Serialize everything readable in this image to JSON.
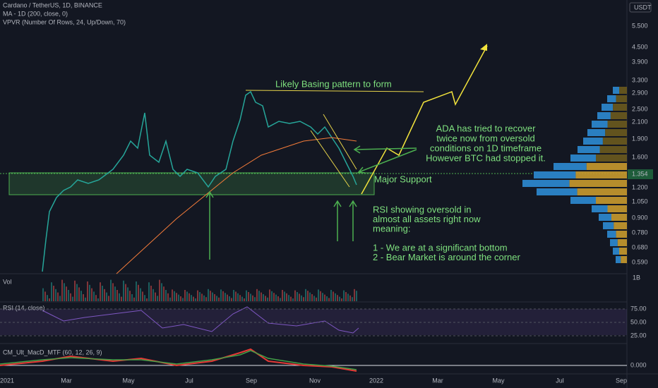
{
  "header": {
    "title": "Cardano / TetherUS, 1D, BINANCE",
    "ma": "MA - 1D (200, close, 0)",
    "vpvr": "VPVR (Number Of Rows, 24, Up/Down, 70)"
  },
  "price_axis": {
    "currency": "USDT",
    "labels": [
      "5.500",
      "4.500",
      "3.900",
      "3.300",
      "2.900",
      "2.500",
      "2.100",
      "1.900",
      "1.600",
      "1.354",
      "1.200",
      "1.050",
      "0.900",
      "0.780",
      "0.680",
      "0.590"
    ]
  },
  "volume": {
    "label": "Vol",
    "axis": "1B"
  },
  "rsi": {
    "label": "RSI (14, close)",
    "axis": [
      "75.00",
      "50.00",
      "25.00"
    ]
  },
  "macd": {
    "label": "CM_Ult_MacD_MTF (60, 12, 26, 9)",
    "axis": "0.000"
  },
  "time_axis": [
    "2021",
    "Mar",
    "May",
    "Jul",
    "Sep",
    "Nov",
    "2022",
    "Mar",
    "May",
    "Jul",
    "Sep"
  ],
  "annotations": {
    "basing": "Likely Basing pattern to form",
    "recover": [
      "ADA has tried to recover",
      "twice now from oversold",
      "conditions on 1D timeframe",
      "However BTC had stopped it."
    ],
    "support": "Major Support",
    "rsi_note": [
      "RSI showing oversold in",
      "almost all assets right now",
      "meaning:",
      "",
      "1 - We are at a significant bottom",
      "2 - Bear Market is around the corner"
    ]
  }
}
